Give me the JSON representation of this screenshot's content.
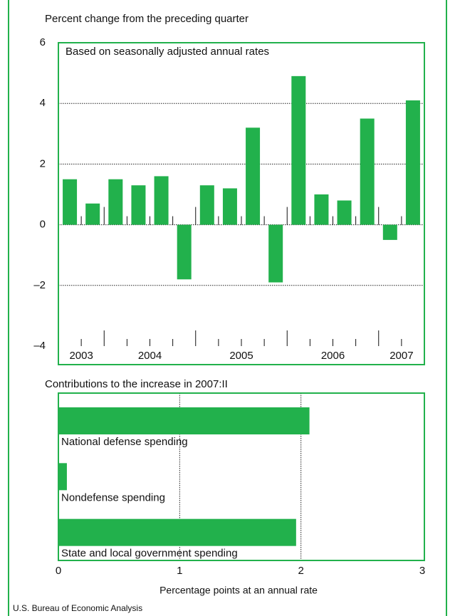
{
  "charts": [
    {
      "type": "bar",
      "title": "Percent change from the preceding quarter",
      "subtitle": "Based on seasonally adjusted annual rates",
      "values": [
        1.5,
        0.7,
        1.5,
        1.3,
        1.6,
        -1.8,
        1.3,
        1.2,
        3.2,
        -1.9,
        4.9,
        1.0,
        0.8,
        3.5,
        -0.5,
        4.1
      ],
      "groups": [
        {
          "label": "2003",
          "count": 2
        },
        {
          "label": "2004",
          "count": 4
        },
        {
          "label": "2005",
          "count": 4
        },
        {
          "label": "2006",
          "count": 4
        },
        {
          "label": "2007",
          "count": 2
        }
      ],
      "color": "#22b14c",
      "ylim": [
        -4,
        6
      ],
      "yticks": [
        {
          "value": -4,
          "label": "–4"
        },
        {
          "value": -2,
          "label": "–2"
        },
        0,
        2,
        4,
        6
      ],
      "grid": true
    },
    {
      "type": "hbar",
      "title": "Contributions to the increase in 2007:II",
      "categories": [
        "National defense spending",
        "Nondefense spending",
        "State and local government spending"
      ],
      "values": [
        2.07,
        0.07,
        1.96
      ],
      "color": "#22b14c",
      "xlim": [
        0,
        3
      ],
      "xticks": [
        0,
        1,
        2,
        3
      ],
      "xlabel": "Percentage points at an annual rate",
      "grid": true
    }
  ],
  "source": "U.S. Bureau of Economic Analysis"
}
